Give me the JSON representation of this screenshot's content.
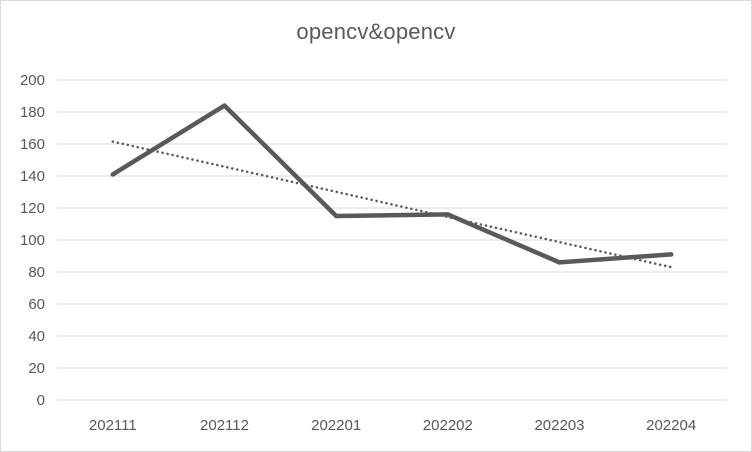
{
  "chart_data": {
    "type": "line",
    "title": "opencv&opencv",
    "xlabel": "",
    "ylabel": "",
    "categories": [
      "202111",
      "202112",
      "202201",
      "202202",
      "202203",
      "202204"
    ],
    "series": [
      {
        "values": [
          141,
          184,
          115,
          116,
          86,
          91
        ],
        "color": "#595959",
        "style": "solid"
      },
      {
        "trendline": "linear",
        "values": [
          161.5,
          145.8,
          130.1,
          114.4,
          98.7,
          83.0
        ],
        "color": "#595959",
        "style": "dotted"
      }
    ],
    "ylim": [
      0,
      200
    ],
    "yticks": [
      0,
      20,
      40,
      60,
      80,
      100,
      120,
      140,
      160,
      180,
      200
    ],
    "grid": true,
    "legend": "none"
  }
}
